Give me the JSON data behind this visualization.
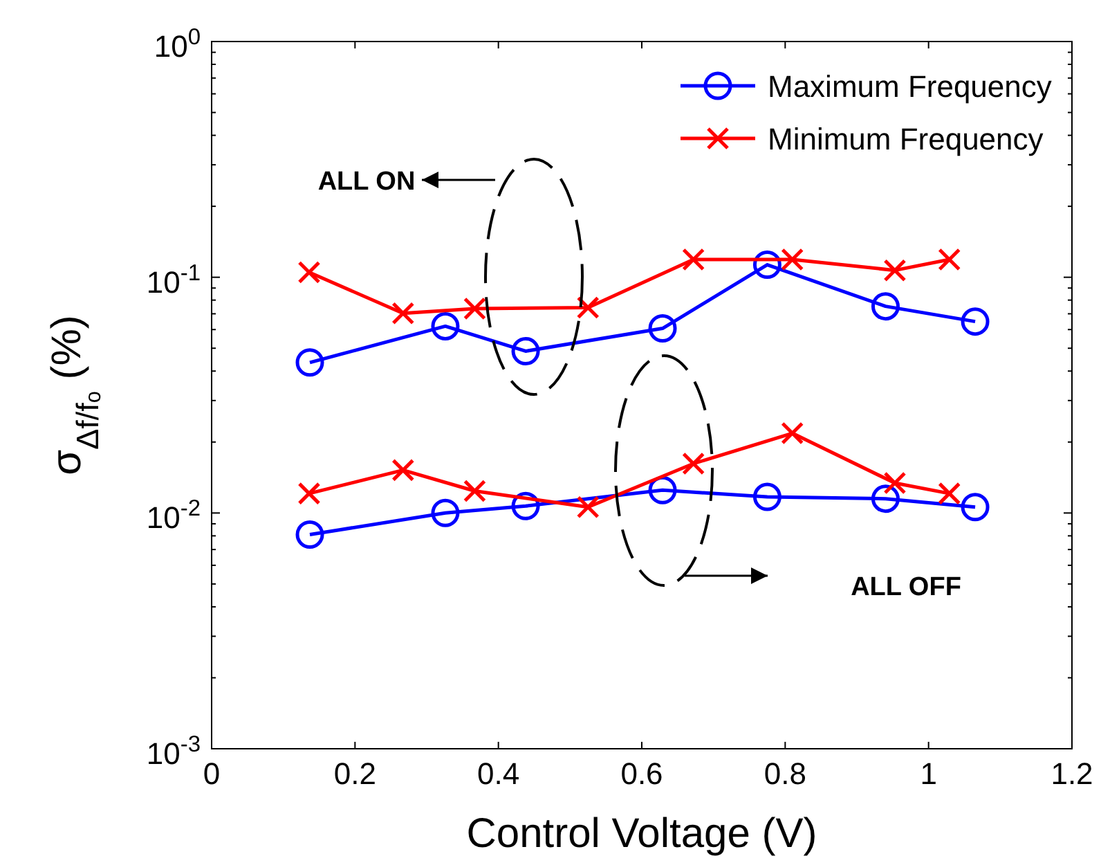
{
  "chart_data": {
    "type": "line",
    "xlabel": "Control Voltage (V)",
    "ylabel": "σ$_{Δf/fₒ}$ (%)",
    "log": "y",
    "grid": false,
    "legend": "top right",
    "xlim": [
      0,
      1.2
    ],
    "xticks": [
      0,
      0.2,
      0.4,
      0.6,
      0.8,
      1,
      1.2
    ],
    "ylim": [
      0.001,
      1
    ],
    "yticks": [
      {
        "value": 0.001,
        "label": "10$^{-3}$"
      },
      {
        "value": 0.01,
        "label": "10$^{-2}$"
      },
      {
        "value": 0.1,
        "label": "10$^{-1}$"
      },
      {
        "value": 1,
        "label": "10$^{0}$"
      }
    ],
    "series": [
      {
        "name": "Maximum Frequency",
        "color": "#0000ff",
        "marker": "circle",
        "x": [
          0.137,
          0.326,
          0.438,
          0.629,
          0.775,
          0.94,
          1.065
        ],
        "values": [
          0.0435,
          0.062,
          0.0486,
          0.0607,
          0.113,
          0.0753,
          0.0649
        ]
      },
      {
        "name": "Minimum Frequency",
        "color": "#ff0000",
        "marker": "cross",
        "x": [
          0.136,
          0.267,
          0.367,
          0.525,
          0.672,
          0.81,
          0.953,
          1.029
        ],
        "values": [
          0.105,
          0.0703,
          0.0736,
          0.0744,
          0.119,
          0.119,
          0.107,
          0.119
        ]
      },
      {
        "color": "#0000ff",
        "marker": "circle",
        "x": [
          0.137,
          0.326,
          0.438,
          0.629,
          0.775,
          0.94,
          1.065
        ],
        "values": [
          0.0081,
          0.01,
          0.0107,
          0.0125,
          0.0117,
          0.0115,
          0.0106
        ]
      },
      {
        "color": "#ff0000",
        "marker": "cross",
        "x": [
          0.136,
          0.267,
          0.367,
          0.525,
          0.672,
          0.81,
          0.953,
          1.029
        ],
        "values": [
          0.0121,
          0.0152,
          0.0124,
          0.0106,
          0.0162,
          0.0218,
          0.0134,
          0.0121
        ]
      }
    ],
    "annotations": [
      "ALL ON",
      "ALL OFF"
    ]
  }
}
